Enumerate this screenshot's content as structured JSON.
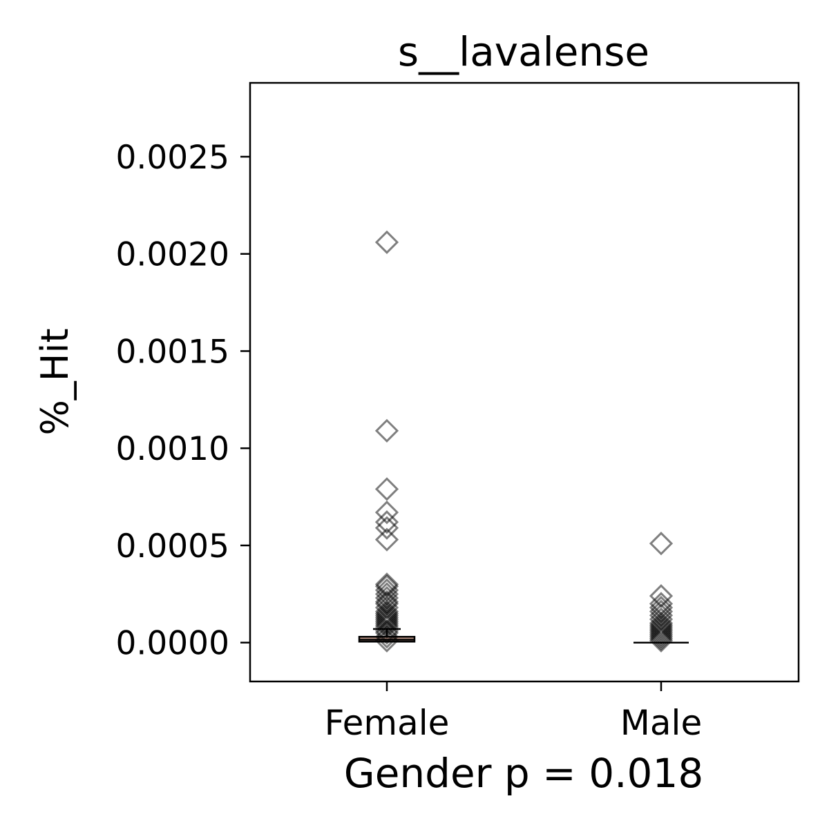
{
  "chart_data": {
    "type": "scatter",
    "title": "s__lavalense",
    "xlabel": "Gender p = 0.018",
    "ylabel": "%_Hit",
    "categories": [
      "Female",
      "Male"
    ],
    "ylim": [
      -0.0002,
      0.00288
    ],
    "yticks": [
      {
        "value": 0.0,
        "label": "0.0000"
      },
      {
        "value": 0.0005,
        "label": "0.0005"
      },
      {
        "value": 0.001,
        "label": "0.0010"
      },
      {
        "value": 0.0015,
        "label": "0.0015"
      },
      {
        "value": 0.002,
        "label": "0.0020"
      },
      {
        "value": 0.0025,
        "label": "0.0025"
      }
    ],
    "grid": false,
    "legend": "none",
    "marker": "diamond-open",
    "marker_color": "#000000",
    "marker_opacity": 0.5,
    "series": [
      {
        "category": "Female",
        "values": [
          0.00206,
          0.00109,
          0.00079,
          0.00067,
          0.00062,
          0.00059,
          0.00053,
          0.0003,
          0.00029,
          0.00027,
          0.00025,
          0.00023,
          0.00021,
          0.0002,
          0.00018,
          0.00016,
          0.00015,
          0.00014,
          0.00013,
          0.00012,
          0.00011,
          0.0001,
          9e-05,
          8e-05,
          6e-05,
          5e-05,
          3e-05,
          1e-05
        ],
        "box": {
          "q1": 5e-06,
          "median": 1.5e-05,
          "q3": 3e-05,
          "whisker_high": 7e-05
        },
        "box_color": "#c49a8a"
      },
      {
        "category": "Male",
        "values": [
          0.00051,
          0.00024,
          0.0002,
          0.00018,
          0.00016,
          0.00014,
          0.00012,
          0.0001,
          9e-05,
          8e-05,
          7e-05,
          6e-05,
          5e-05,
          4e-05,
          3e-05,
          2e-05,
          1e-05
        ],
        "box": {
          "q1": 0.0,
          "median": 0.0,
          "q3": 0.0,
          "whisker_high": 0.0
        },
        "box_color": "#000000"
      }
    ]
  }
}
